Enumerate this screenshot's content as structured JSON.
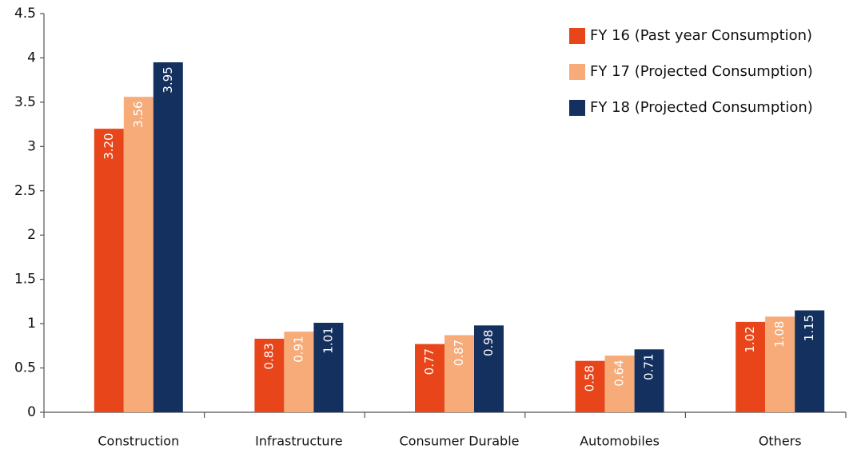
{
  "chart_data": {
    "type": "bar",
    "categories": [
      "Construction",
      "Infrastructure",
      "Consumer Durable",
      "Automobiles",
      "Others"
    ],
    "series": [
      {
        "name": "FY 16 (Past year Consumption)",
        "color": "#e8461a",
        "values": [
          3.2,
          0.83,
          0.77,
          0.58,
          1.02
        ],
        "value_labels": [
          "3.20",
          "0.83",
          "0.77",
          "0.58",
          "1.02"
        ]
      },
      {
        "name": "FY 17 (Projected Consumption)",
        "color": "#f7ab79",
        "values": [
          3.56,
          0.91,
          0.87,
          0.64,
          1.08
        ],
        "value_labels": [
          "3.56",
          "0.91",
          "0.87",
          "0.64",
          "1.08"
        ]
      },
      {
        "name": "FY 18 (Projected Consumption)",
        "color": "#14305f",
        "values": [
          3.95,
          1.01,
          0.98,
          0.71,
          1.15
        ],
        "value_labels": [
          "3.95",
          "1.01",
          "0.98",
          "0.71",
          "1.15"
        ]
      }
    ],
    "ylim": [
      0,
      4.5
    ],
    "yticks": [
      0,
      0.5,
      1,
      1.5,
      2,
      2.5,
      3,
      3.5,
      4,
      4.5
    ],
    "grid": false,
    "legend": "top-right"
  }
}
